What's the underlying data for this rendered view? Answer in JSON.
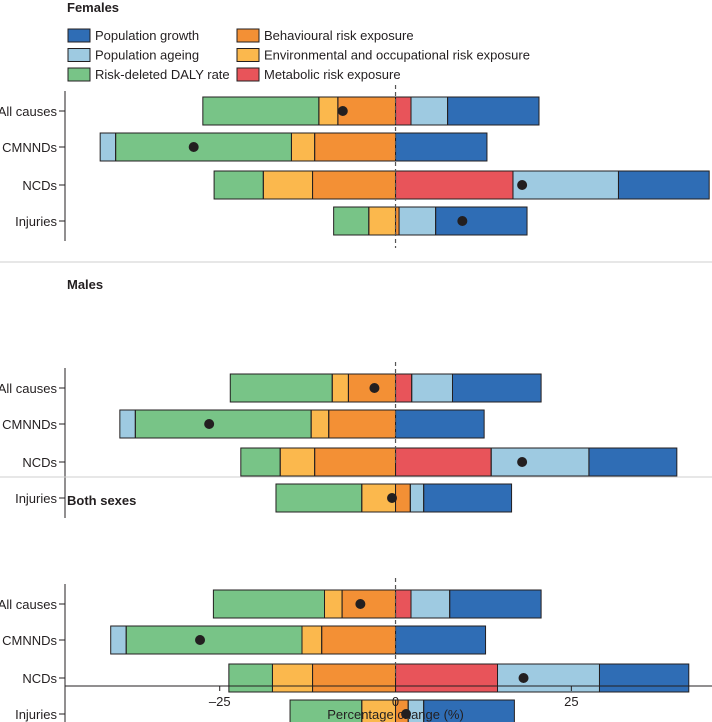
{
  "chart_data": {
    "type": "bar",
    "subtype": "stacked-horizontal-diverging",
    "xlabel": "Percentage change (%)",
    "xlim": [
      -47,
      45
    ],
    "xticks": [
      -25,
      0,
      25
    ],
    "xtick_labels": [
      "–25",
      "0",
      "25"
    ],
    "legend": {
      "placement": "top",
      "items": [
        {
          "key": "growth",
          "label": "Population growth"
        },
        {
          "key": "behavioural",
          "label": "Behavioural risk exposure"
        },
        {
          "key": "ageing",
          "label": "Population ageing"
        },
        {
          "key": "environmental",
          "label": "Environmental and occupational risk exposure"
        },
        {
          "key": "risk_deleted",
          "label": "Risk-deleted DALY rate"
        },
        {
          "key": "metabolic",
          "label": "Metabolic risk exposure"
        }
      ]
    },
    "colors": {
      "growth": "#2f6db5",
      "ageing": "#9ecae1",
      "risk_deleted": "#78c487",
      "behavioural": "#f39035",
      "environmental": "#fbb84d",
      "metabolic": "#e8545a",
      "dot": "#231f20",
      "zero_line": "#555555"
    },
    "panels": [
      {
        "title": "Females",
        "rows": [
          {
            "category": "All causes",
            "negative": [
              {
                "key": "behavioural",
                "value": -8.2
              },
              {
                "key": "environmental",
                "value": -2.7
              },
              {
                "key": "risk_deleted",
                "value": -16.5
              }
            ],
            "positive": [
              {
                "key": "metabolic",
                "value": 2.2
              },
              {
                "key": "ageing",
                "value": 5.2
              },
              {
                "key": "growth",
                "value": 13.0
              }
            ],
            "net": -7.5
          },
          {
            "category": "CMNNDs",
            "negative": [
              {
                "key": "behavioural",
                "value": -11.5
              },
              {
                "key": "environmental",
                "value": -3.3
              },
              {
                "key": "risk_deleted",
                "value": -25.0
              },
              {
                "key": "ageing",
                "value": -2.2
              }
            ],
            "positive": [
              {
                "key": "growth",
                "value": 13.0
              }
            ],
            "net": -28.7
          },
          {
            "category": "NCDs",
            "negative": [
              {
                "key": "behavioural",
                "value": -11.8
              },
              {
                "key": "environmental",
                "value": -7.0
              },
              {
                "key": "risk_deleted",
                "value": -7.0
              }
            ],
            "positive": [
              {
                "key": "metabolic",
                "value": 16.7
              },
              {
                "key": "ageing",
                "value": 15.0
              },
              {
                "key": "growth",
                "value": 12.9
              }
            ],
            "net": 18.0
          },
          {
            "category": "Injuries",
            "negative": [
              {
                "key": "environmental",
                "value": -3.8
              },
              {
                "key": "risk_deleted",
                "value": -5.0
              }
            ],
            "positive": [
              {
                "key": "behavioural",
                "value": 0.5
              },
              {
                "key": "ageing",
                "value": 5.2
              },
              {
                "key": "growth",
                "value": 13.0
              }
            ],
            "net": 9.5
          }
        ]
      },
      {
        "title": "Males",
        "rows": [
          {
            "category": "All causes",
            "negative": [
              {
                "key": "behavioural",
                "value": -6.7
              },
              {
                "key": "environmental",
                "value": -2.3
              },
              {
                "key": "risk_deleted",
                "value": -14.5
              }
            ],
            "positive": [
              {
                "key": "metabolic",
                "value": 2.3
              },
              {
                "key": "ageing",
                "value": 5.8
              },
              {
                "key": "growth",
                "value": 12.6
              }
            ],
            "net": -3.0
          },
          {
            "category": "CMNNDs",
            "negative": [
              {
                "key": "behavioural",
                "value": -9.5
              },
              {
                "key": "environmental",
                "value": -2.5
              },
              {
                "key": "risk_deleted",
                "value": -25.0
              },
              {
                "key": "ageing",
                "value": -2.2
              }
            ],
            "positive": [
              {
                "key": "growth",
                "value": 12.6
              }
            ],
            "net": -26.5
          },
          {
            "category": "NCDs",
            "negative": [
              {
                "key": "behavioural",
                "value": -11.5
              },
              {
                "key": "environmental",
                "value": -4.9
              },
              {
                "key": "risk_deleted",
                "value": -5.6
              }
            ],
            "positive": [
              {
                "key": "metabolic",
                "value": 13.6
              },
              {
                "key": "ageing",
                "value": 13.9
              },
              {
                "key": "growth",
                "value": 12.5
              }
            ],
            "net": 18.0
          },
          {
            "category": "Injuries",
            "negative": [
              {
                "key": "environmental",
                "value": -4.8
              },
              {
                "key": "risk_deleted",
                "value": -12.2
              }
            ],
            "positive": [
              {
                "key": "behavioural",
                "value": 2.1
              },
              {
                "key": "ageing",
                "value": 1.9
              },
              {
                "key": "growth",
                "value": 12.5
              }
            ],
            "net": -0.5
          }
        ]
      },
      {
        "title": "Both sexes",
        "rows": [
          {
            "category": "All causes",
            "negative": [
              {
                "key": "behavioural",
                "value": -7.6
              },
              {
                "key": "environmental",
                "value": -2.5
              },
              {
                "key": "risk_deleted",
                "value": -15.8
              }
            ],
            "positive": [
              {
                "key": "metabolic",
                "value": 2.2
              },
              {
                "key": "ageing",
                "value": 5.5
              },
              {
                "key": "growth",
                "value": 13.0
              }
            ],
            "net": -5.0
          },
          {
            "category": "CMNNDs",
            "negative": [
              {
                "key": "behavioural",
                "value": -10.5
              },
              {
                "key": "environmental",
                "value": -2.8
              },
              {
                "key": "risk_deleted",
                "value": -25.0
              },
              {
                "key": "ageing",
                "value": -2.2
              }
            ],
            "positive": [
              {
                "key": "growth",
                "value": 12.8
              }
            ],
            "net": -27.8
          },
          {
            "category": "NCDs",
            "negative": [
              {
                "key": "behavioural",
                "value": -11.8
              },
              {
                "key": "environmental",
                "value": -5.7
              },
              {
                "key": "risk_deleted",
                "value": -6.2
              }
            ],
            "positive": [
              {
                "key": "metabolic",
                "value": 14.5
              },
              {
                "key": "ageing",
                "value": 14.5
              },
              {
                "key": "growth",
                "value": 12.7
              }
            ],
            "net": 18.2
          },
          {
            "category": "Injuries",
            "negative": [
              {
                "key": "environmental",
                "value": -4.8
              },
              {
                "key": "risk_deleted",
                "value": -10.2
              }
            ],
            "positive": [
              {
                "key": "behavioural",
                "value": 1.8
              },
              {
                "key": "ageing",
                "value": 2.2
              },
              {
                "key": "growth",
                "value": 12.9
              }
            ],
            "net": 1.5
          }
        ]
      }
    ]
  }
}
